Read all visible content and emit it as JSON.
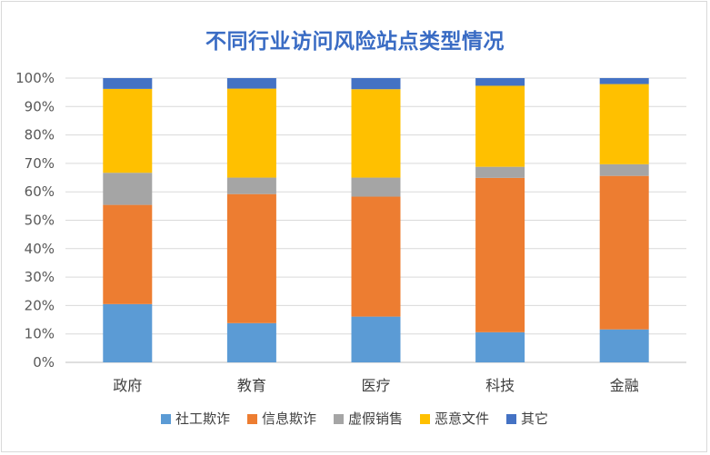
{
  "chart_data": {
    "type": "bar",
    "stacked": true,
    "title": "不同行业访问风险站点类型情况",
    "xlabel": "",
    "ylabel": "",
    "ylim": [
      0,
      100
    ],
    "yticks": [
      "0%",
      "10%",
      "20%",
      "30%",
      "40%",
      "50%",
      "60%",
      "70%",
      "80%",
      "90%",
      "100%"
    ],
    "categories": [
      "政府",
      "教育",
      "医疗",
      "科技",
      "金融"
    ],
    "series": [
      {
        "name": "社工欺诈",
        "color": "#5b9bd5",
        "values": [
          20.5,
          13.8,
          16.1,
          10.6,
          11.6
        ]
      },
      {
        "name": "信息欺诈",
        "color": "#ed7d31",
        "values": [
          34.9,
          45.4,
          42.2,
          54.3,
          54.0
        ]
      },
      {
        "name": "虚假销售",
        "color": "#a5a5a5",
        "values": [
          11.3,
          5.8,
          6.7,
          3.9,
          4.1
        ]
      },
      {
        "name": "恶意文件",
        "color": "#ffc000",
        "values": [
          29.5,
          31.3,
          31.1,
          28.5,
          28.2
        ]
      },
      {
        "name": "其它",
        "color": "#4472c4",
        "values": [
          3.8,
          3.7,
          3.9,
          2.7,
          2.1
        ]
      }
    ],
    "grid": true,
    "legend": "bottom"
  }
}
